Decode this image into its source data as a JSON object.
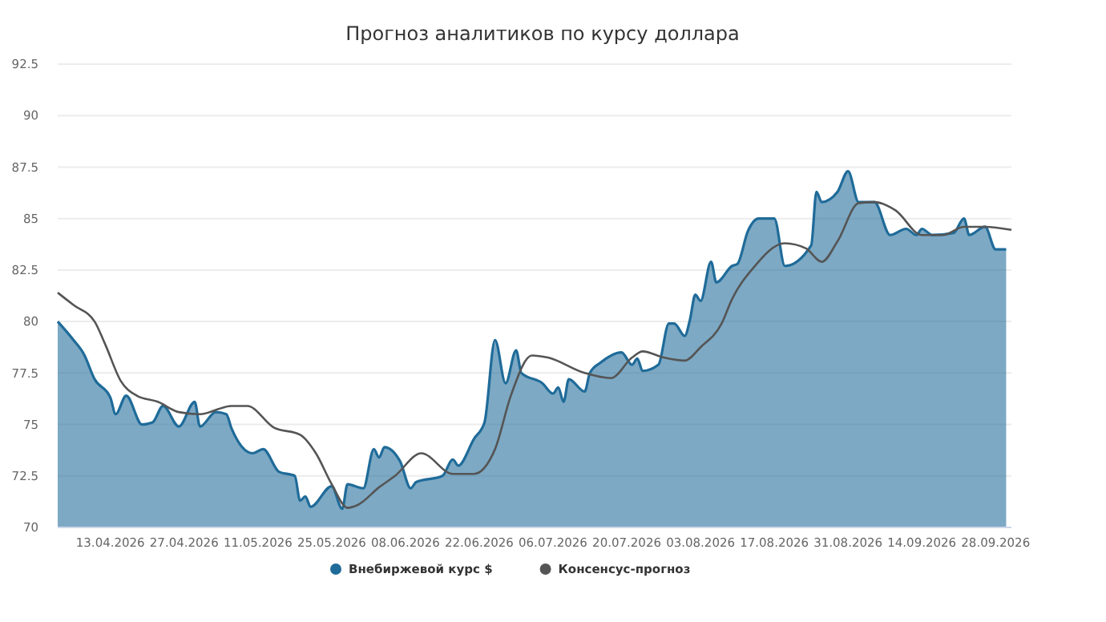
{
  "chart_data": {
    "type": "area",
    "title": "Прогноз аналитиков по курсу доллара",
    "xlim": [
      "2026-04-03",
      "2026-10-01"
    ],
    "xticks": [
      {
        "value": "2026-04-13",
        "label": "13.04.2026"
      },
      {
        "value": "2026-04-27",
        "label": "27.04.2026"
      },
      {
        "value": "2026-05-11",
        "label": "11.05.2026"
      },
      {
        "value": "2026-05-25",
        "label": "25.05.2026"
      },
      {
        "value": "2026-06-08",
        "label": "08.06.2026"
      },
      {
        "value": "2026-06-22",
        "label": "22.06.2026"
      },
      {
        "value": "2026-07-06",
        "label": "06.07.2026"
      },
      {
        "value": "2026-07-20",
        "label": "20.07.2026"
      },
      {
        "value": "2026-08-03",
        "label": "03.08.2026"
      },
      {
        "value": "2026-08-17",
        "label": "17.08.2026"
      },
      {
        "value": "2026-08-31",
        "label": "31.08.2026"
      },
      {
        "value": "2026-09-14",
        "label": "14.09.2026"
      },
      {
        "value": "2026-09-28",
        "label": "28.09.2026"
      }
    ],
    "ylim": [
      70,
      92.5
    ],
    "yticks": [
      70,
      72.5,
      75,
      77.5,
      80,
      82.5,
      85,
      87.5,
      90,
      92.5
    ],
    "grid": "y",
    "legend": "bottom",
    "marker": "none",
    "series": [
      {
        "name": "Внебиржевой курс $",
        "color": "#1f6b99",
        "x": [
          "2026-04-03",
          "2026-04-06",
          "2026-04-08",
          "2026-04-10",
          "2026-04-13",
          "2026-04-14",
          "2026-04-16",
          "2026-04-19",
          "2026-04-21",
          "2026-04-23",
          "2026-04-26",
          "2026-04-29",
          "2026-04-30",
          "2026-05-03",
          "2026-05-05",
          "2026-05-06",
          "2026-05-10",
          "2026-05-12",
          "2026-05-15",
          "2026-05-18",
          "2026-05-19",
          "2026-05-20",
          "2026-05-21",
          "2026-05-25",
          "2026-05-27",
          "2026-05-28",
          "2026-05-31",
          "2026-06-02",
          "2026-06-03",
          "2026-06-04",
          "2026-06-07",
          "2026-06-09",
          "2026-06-10",
          "2026-06-15",
          "2026-06-17",
          "2026-06-18",
          "2026-06-21",
          "2026-06-23",
          "2026-06-25",
          "2026-06-27",
          "2026-06-29",
          "2026-06-30",
          "2026-07-04",
          "2026-07-06",
          "2026-07-07",
          "2026-07-08",
          "2026-07-09",
          "2026-07-12",
          "2026-07-13",
          "2026-07-15",
          "2026-07-19",
          "2026-07-21",
          "2026-07-22",
          "2026-07-23",
          "2026-07-26",
          "2026-07-28",
          "2026-07-29",
          "2026-07-31",
          "2026-08-01",
          "2026-08-02",
          "2026-08-03",
          "2026-08-05",
          "2026-08-06",
          "2026-08-09",
          "2026-08-10",
          "2026-08-12",
          "2026-08-14",
          "2026-08-17",
          "2026-08-19",
          "2026-08-24",
          "2026-08-25",
          "2026-08-26",
          "2026-08-29",
          "2026-08-31",
          "2026-09-02",
          "2026-09-05",
          "2026-09-08",
          "2026-09-11",
          "2026-09-13",
          "2026-09-14",
          "2026-09-16",
          "2026-09-20",
          "2026-09-22",
          "2026-09-23",
          "2026-09-26",
          "2026-09-28",
          "2026-09-30"
        ],
        "values": [
          80.0,
          79.1,
          78.4,
          77.2,
          76.3,
          75.5,
          76.4,
          75.0,
          75.1,
          75.9,
          74.9,
          76.1,
          74.9,
          75.6,
          75.5,
          74.8,
          73.6,
          73.8,
          72.7,
          72.5,
          71.3,
          71.5,
          71.0,
          72.0,
          70.9,
          72.1,
          71.9,
          73.8,
          73.4,
          73.9,
          73.2,
          71.9,
          72.2,
          72.5,
          73.3,
          73.0,
          74.3,
          75.1,
          79.1,
          77.0,
          78.6,
          77.5,
          77.0,
          76.5,
          76.8,
          76.1,
          77.2,
          76.6,
          77.5,
          78.0,
          78.5,
          77.9,
          78.2,
          77.6,
          77.9,
          79.9,
          79.9,
          79.3,
          80.1,
          81.3,
          81.0,
          82.9,
          81.9,
          82.7,
          82.8,
          84.4,
          85.0,
          85.0,
          82.7,
          83.7,
          86.3,
          85.8,
          86.3,
          87.3,
          85.8,
          85.8,
          84.2,
          84.5,
          84.2,
          84.5,
          84.2,
          84.3,
          85.0,
          84.2,
          84.6,
          83.5,
          83.5
        ]
      },
      {
        "name": "Консенсус-прогноз",
        "type": "line",
        "color": "#555555",
        "x": [
          "2026-04-03",
          "2026-04-06",
          "2026-04-10",
          "2026-04-12",
          "2026-04-15",
          "2026-04-18",
          "2026-04-22",
          "2026-04-26",
          "2026-04-30",
          "2026-05-06",
          "2026-05-09",
          "2026-05-14",
          "2026-05-19",
          "2026-05-22",
          "2026-05-25",
          "2026-05-28",
          "2026-05-30",
          "2026-06-03",
          "2026-06-06",
          "2026-06-11",
          "2026-06-17",
          "2026-06-21",
          "2026-06-25",
          "2026-06-28",
          "2026-07-02",
          "2026-07-05",
          "2026-07-12",
          "2026-07-17",
          "2026-07-21",
          "2026-07-23",
          "2026-07-27",
          "2026-07-31",
          "2026-08-03",
          "2026-08-07",
          "2026-08-09",
          "2026-08-13",
          "2026-08-19",
          "2026-08-23",
          "2026-08-26",
          "2026-08-29",
          "2026-09-02",
          "2026-09-05",
          "2026-09-09",
          "2026-09-14",
          "2026-09-18",
          "2026-09-22",
          "2026-09-26",
          "2026-10-01"
        ],
        "values": [
          81.4,
          80.8,
          80.0,
          78.9,
          77.1,
          76.4,
          76.1,
          75.6,
          75.5,
          75.9,
          75.9,
          74.85,
          74.5,
          73.6,
          72.1,
          70.95,
          71.1,
          71.95,
          72.5,
          73.6,
          72.6,
          72.6,
          73.8,
          76.4,
          78.35,
          78.25,
          77.5,
          77.25,
          78.25,
          78.55,
          78.25,
          78.1,
          78.75,
          79.9,
          81.1,
          82.6,
          83.8,
          83.55,
          82.9,
          83.9,
          85.75,
          85.8,
          85.4,
          84.2,
          84.2,
          84.6,
          84.6,
          84.45
        ]
      }
    ]
  }
}
